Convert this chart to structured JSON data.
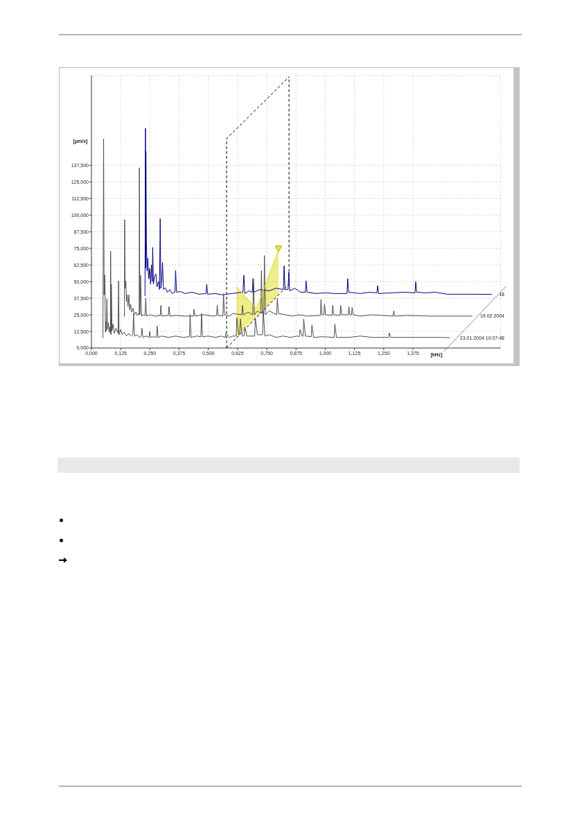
{
  "chart_data": {
    "type": "line",
    "xlabel": "[kHz]",
    "ylabel": "[µm/s]",
    "xlim": [
      0,
      1.75
    ],
    "ylim": [
      0,
      205
    ],
    "xticks": [
      {
        "value": 0,
        "label": "0,000"
      },
      {
        "value": 0.125,
        "label": "0,125"
      },
      {
        "value": 0.25,
        "label": "0,250"
      },
      {
        "value": 0.375,
        "label": "0,375"
      },
      {
        "value": 0.5,
        "label": "0,500"
      },
      {
        "value": 0.625,
        "label": "0,625"
      },
      {
        "value": 0.75,
        "label": "0,750"
      },
      {
        "value": 0.875,
        "label": "0,875"
      },
      {
        "value": 1,
        "label": "1,000"
      },
      {
        "value": 1.125,
        "label": "1,125"
      },
      {
        "value": 1.25,
        "label": "1,250"
      },
      {
        "value": 1.375,
        "label": "1,375"
      }
    ],
    "yticks": [
      {
        "value": 0,
        "label": "0,000"
      },
      {
        "value": 12.5,
        "label": "12,500"
      },
      {
        "value": 25,
        "label": "25,000"
      },
      {
        "value": 37.5,
        "label": "37,500"
      },
      {
        "value": 50,
        "label": "50,000"
      },
      {
        "value": 62.5,
        "label": "62,500"
      },
      {
        "value": 75,
        "label": "75,000"
      },
      {
        "value": 87.5,
        "label": "87,500"
      },
      {
        "value": 100,
        "label": "100,000"
      },
      {
        "value": 112.5,
        "label": "112,500"
      },
      {
        "value": 125,
        "label": "125,000"
      },
      {
        "value": 137.5,
        "label": "137,500"
      }
    ],
    "grid": true,
    "series": [
      {
        "color": "#000000",
        "line_style": "dashed",
        "x": [
          0.578,
          0.578,
          0.845
        ],
        "values": [
          0,
          157.5,
          204
        ]
      },
      {
        "color": "#000000",
        "line_style": "dashed",
        "x": [
          0.578,
          0.845,
          0.845
        ],
        "values": [
          0,
          48,
          204
        ]
      },
      {
        "name": "18",
        "color": "#000080",
        "x": [
          0.229,
          0.231,
          0.232,
          0.233,
          0.235,
          0.238,
          0.241,
          0.245,
          0.249,
          0.253,
          0.257,
          0.26,
          0.262,
          0.265,
          0.27,
          0.276,
          0.28,
          0.287,
          0.291,
          0.294,
          0.297,
          0.301,
          0.304,
          0.308,
          0.316,
          0.325,
          0.335,
          0.345,
          0.357,
          0.36,
          0.364,
          0.38,
          0.4,
          0.43,
          0.46,
          0.49,
          0.493,
          0.497,
          0.53,
          0.56,
          0.6,
          0.648,
          0.652,
          0.656,
          0.675,
          0.688,
          0.691,
          0.695,
          0.72,
          0.76,
          0.79,
          0.821,
          0.824,
          0.828,
          0.841,
          0.844,
          0.848,
          0.87,
          0.895,
          0.915,
          0.918,
          0.922,
          0.96,
          1.0,
          1.04,
          1.093,
          1.096,
          1.1,
          1.15,
          1.19,
          1.221,
          1.224,
          1.228,
          1.28,
          1.34,
          1.384,
          1.387,
          1.391,
          1.43,
          1.47,
          1.52,
          1.6,
          1.713
        ],
        "values": [
          39.1,
          165.3,
          60,
          147.9,
          80.1,
          58,
          67.7,
          52,
          60,
          48,
          62.6,
          50,
          75.7,
          48,
          54,
          55.7,
          46,
          50,
          44,
          97.4,
          45,
          52,
          64.4,
          44,
          45.3,
          42,
          44,
          41,
          42,
          58.3,
          42,
          42.5,
          41,
          42,
          40.5,
          41,
          47.9,
          40.5,
          41,
          40,
          41,
          42,
          54.8,
          41,
          43,
          42,
          52.2,
          42,
          44,
          43,
          45,
          44,
          61.8,
          44,
          44,
          57.4,
          43,
          45,
          42,
          42,
          50.5,
          42,
          41,
          41.5,
          41,
          41,
          52.2,
          42,
          41,
          42,
          41.5,
          47,
          41,
          41.5,
          42,
          41.5,
          49.9,
          42,
          41.5,
          42,
          40.5,
          40.5,
          40.4
        ]
      },
      {
        "name": "19.02.2004",
        "color": "#4d4d4d",
        "x": [
          0.141,
          0.142,
          0.144,
          0.147,
          0.15,
          0.152,
          0.156,
          0.16,
          0.163,
          0.167,
          0.172,
          0.178,
          0.184,
          0.19,
          0.196,
          0.202,
          0.204,
          0.205,
          0.207,
          0.21,
          0.214,
          0.222,
          0.229,
          0.232,
          0.236,
          0.25,
          0.272,
          0.294,
          0.297,
          0.3,
          0.329,
          0.332,
          0.336,
          0.36,
          0.4,
          0.436,
          0.439,
          0.443,
          0.48,
          0.52,
          0.535,
          0.538,
          0.542,
          0.562,
          0.565,
          0.569,
          0.59,
          0.605,
          0.643,
          0.646,
          0.65,
          0.67,
          0.69,
          0.693,
          0.697,
          0.71,
          0.724,
          0.727,
          0.731,
          0.737,
          0.74,
          0.744,
          0.76,
          0.792,
          0.795,
          0.8,
          0.83,
          0.86,
          0.89,
          0.92,
          0.979,
          0.982,
          0.986,
          0.994,
          0.997,
          1.001,
          1.029,
          1.032,
          1.036,
          1.063,
          1.066,
          1.07,
          1.098,
          1.101,
          1.105,
          1.112,
          1.115,
          1.12,
          1.15,
          1.2,
          1.29,
          1.293,
          1.297,
          1.35,
          1.45,
          1.55,
          1.629
        ],
        "values": [
          23.5,
          96.6,
          45,
          50.5,
          35,
          40,
          31.3,
          40,
          28.7,
          33,
          27,
          30,
          25.3,
          27,
          24.5,
          26,
          25,
          135.7,
          25,
          54.8,
          24,
          25,
          24.5,
          37.4,
          24,
          25,
          24,
          24.5,
          32.2,
          24,
          24.5,
          31.3,
          24,
          24.5,
          24,
          24,
          29.2,
          24,
          25,
          24,
          24.5,
          32.2,
          24.5,
          24,
          40.9,
          25,
          24,
          26,
          25,
          32.2,
          25,
          27,
          25,
          52.2,
          25,
          28,
          26,
          58.3,
          26,
          25,
          69.6,
          25,
          28,
          25,
          37.4,
          26,
          25,
          24,
          25,
          24,
          24.5,
          36.5,
          25,
          25,
          33,
          25,
          24.5,
          32.2,
          25,
          24.5,
          32.2,
          25,
          25,
          31.3,
          25,
          25,
          30.5,
          25,
          24,
          25,
          24,
          27.9,
          24,
          24.5,
          24,
          24,
          24
        ]
      },
      {
        "name": "23.01.2004 10:07:48",
        "color": "#4d4d4d",
        "x": [
          0.049,
          0.052,
          0.054,
          0.057,
          0.06,
          0.062,
          0.064,
          0.066,
          0.069,
          0.072,
          0.076,
          0.08,
          0.081,
          0.082,
          0.084,
          0.085,
          0.088,
          0.092,
          0.098,
          0.105,
          0.112,
          0.114,
          0.116,
          0.118,
          0.125,
          0.131,
          0.14,
          0.15,
          0.16,
          0.17,
          0.177,
          0.18,
          0.184,
          0.195,
          0.205,
          0.213,
          0.216,
          0.22,
          0.235,
          0.246,
          0.249,
          0.253,
          0.27,
          0.278,
          0.281,
          0.285,
          0.3,
          0.33,
          0.36,
          0.39,
          0.419,
          0.422,
          0.426,
          0.45,
          0.468,
          0.471,
          0.475,
          0.5,
          0.53,
          0.555,
          0.572,
          0.575,
          0.59,
          0.605,
          0.619,
          0.622,
          0.63,
          0.634,
          0.637,
          0.645,
          0.653,
          0.656,
          0.665,
          0.698,
          0.701,
          0.71,
          0.732,
          0.735,
          0.742,
          0.76,
          0.79,
          0.82,
          0.85,
          0.88,
          0.889,
          0.892,
          0.9,
          0.905,
          0.908,
          0.915,
          0.94,
          0.943,
          0.95,
          0.99,
          1.038,
          1.041,
          1.048,
          1.1,
          1.15,
          1.2,
          1.271,
          1.274,
          1.28,
          1.35,
          1.42,
          1.48,
          1.534
        ],
        "values": [
          7.5,
          157.5,
          40,
          55,
          12,
          20,
          13,
          37,
          14,
          19,
          12,
          16,
          11,
          73,
          10,
          48,
          13,
          18,
          11,
          15,
          12,
          11,
          50.5,
          10,
          14,
          10,
          12,
          9,
          11,
          9,
          10,
          26,
          9,
          10,
          8,
          9,
          15,
          8,
          9,
          8,
          12.4,
          8,
          8.5,
          8,
          16.5,
          8,
          9,
          8,
          9,
          8,
          8.5,
          25.3,
          8,
          9,
          8.5,
          26,
          8.5,
          9,
          8,
          9,
          8,
          11,
          8,
          9,
          9,
          22.6,
          10,
          10,
          22,
          9,
          9,
          15.7,
          9,
          9,
          22.6,
          10,
          10,
          27.9,
          9,
          10,
          8,
          9,
          8,
          9,
          8.5,
          13.9,
          9,
          9,
          21.8,
          9,
          8.5,
          17.4,
          8,
          8.5,
          8,
          18,
          8,
          8,
          9,
          8,
          8,
          11.3,
          8,
          8,
          8,
          8,
          7.8
        ]
      },
      {
        "color": "#e2dc2a",
        "x": [
          0.62,
          0.706,
          0.8
        ],
        "values": [
          46.1,
          29.6,
          74
        ],
        "lower": [
          8.7,
          23.5,
          40
        ],
        "upper": [
          46.1,
          29.6,
          74
        ]
      },
      {
        "type": "scatter",
        "color": "#ffee00",
        "marker": "triangle",
        "x": [
          0.8
        ],
        "values": [
          75
        ]
      }
    ]
  }
}
